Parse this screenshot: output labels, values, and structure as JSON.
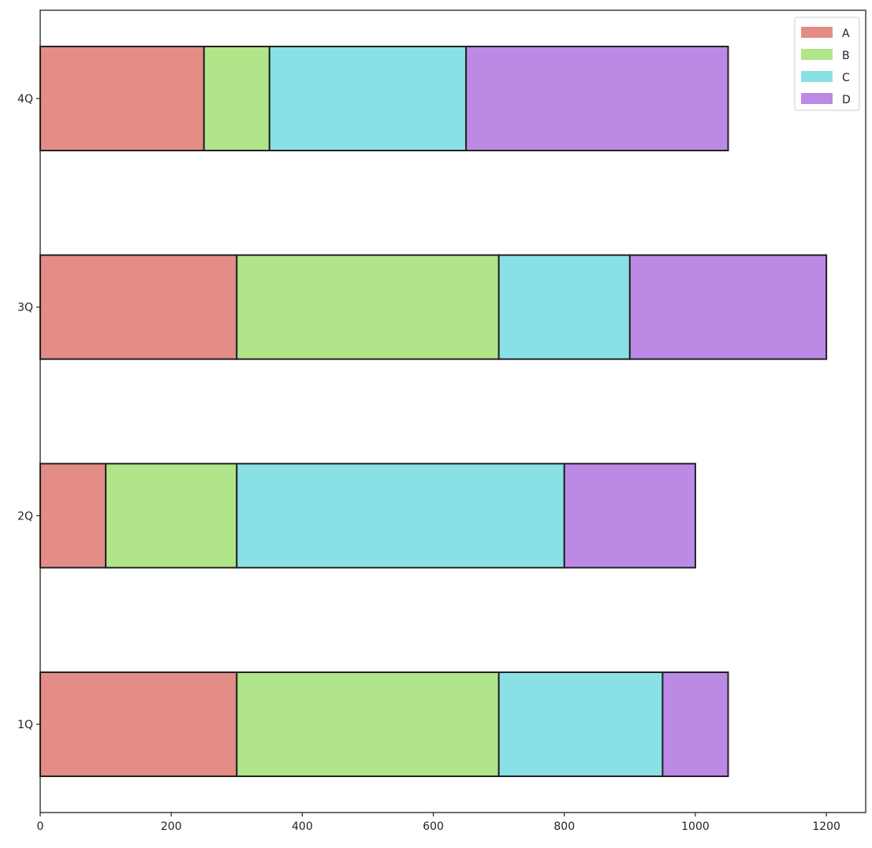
{
  "chart_data": {
    "type": "bar",
    "orientation": "horizontal",
    "stacked": true,
    "categories": [
      "1Q",
      "2Q",
      "3Q",
      "4Q"
    ],
    "series": [
      {
        "name": "A",
        "values": [
          300,
          100,
          300,
          250
        ],
        "color": "#e48c86"
      },
      {
        "name": "B",
        "values": [
          400,
          200,
          400,
          100
        ],
        "color": "#b1e589"
      },
      {
        "name": "C",
        "values": [
          250,
          500,
          200,
          300
        ],
        "color": "#89e1e5"
      },
      {
        "name": "D",
        "values": [
          100,
          200,
          300,
          400
        ],
        "color": "#bc89e5"
      }
    ],
    "title": "",
    "xlabel": "",
    "ylabel": "",
    "xlim": [
      0,
      1260
    ],
    "xticks": [
      0,
      200,
      400,
      600,
      800,
      1000,
      1200
    ],
    "grid": false,
    "legend_position": "top-right"
  }
}
